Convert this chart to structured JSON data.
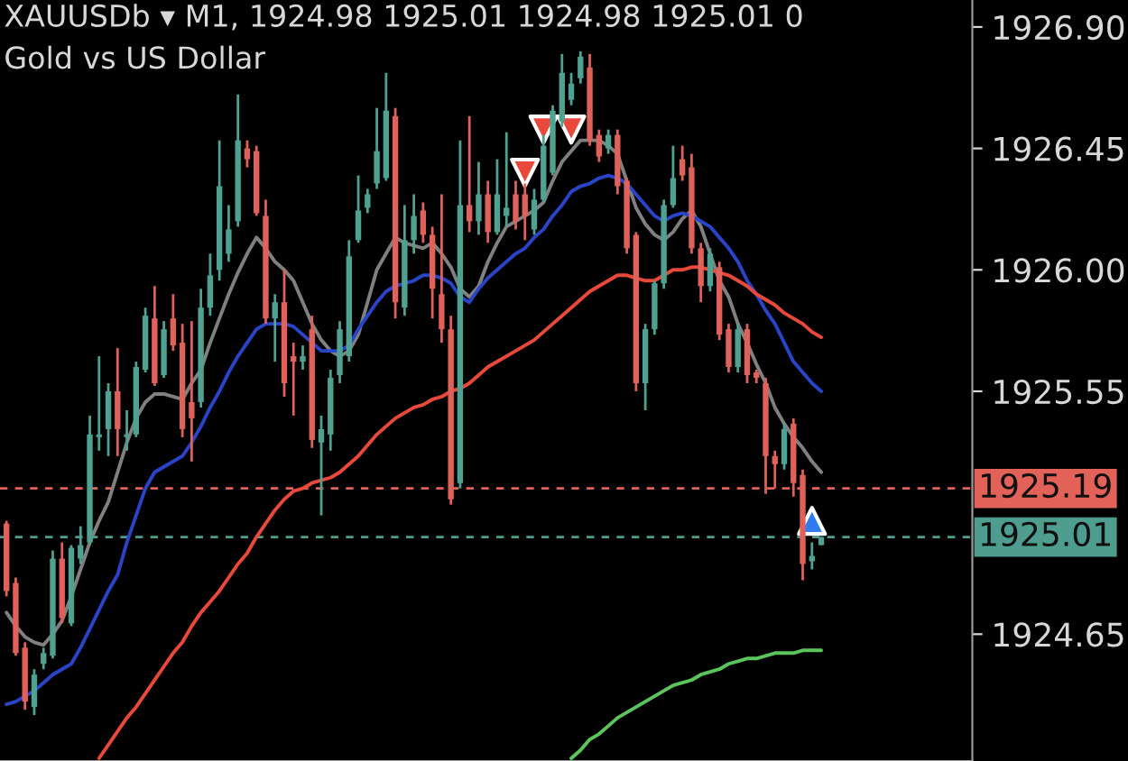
{
  "chart_data": {
    "type": "candlestick",
    "title": "XAUUSDb ▾ M1, 1924.98 1925.01 1924.98 1925.01 0",
    "subtitle": "Gold vs US Dollar",
    "categories": [
      null,
      null,
      null,
      null,
      null,
      null,
      null,
      null,
      null,
      null,
      null,
      null,
      null,
      null,
      null,
      null,
      null,
      null,
      null,
      null,
      null,
      null,
      null,
      null,
      null,
      null,
      null,
      null,
      null,
      null,
      null,
      null,
      null,
      null,
      null,
      null,
      null,
      null,
      null,
      null,
      null,
      null,
      null,
      null,
      null,
      null,
      null,
      null,
      null,
      null,
      null,
      null,
      null,
      null,
      null,
      null,
      null,
      null,
      null,
      null,
      null,
      null,
      null,
      null,
      null,
      null,
      null,
      null,
      null,
      null,
      null,
      null,
      null,
      null,
      null,
      null,
      null,
      null,
      null,
      null,
      null,
      null,
      null,
      null,
      null,
      null,
      null,
      null,
      null
    ],
    "ohlc": [
      [
        1925.06,
        1925.07,
        1924.79,
        1924.81
      ],
      [
        1924.84,
        1924.86,
        1924.57,
        1924.58
      ],
      [
        1924.6,
        1924.62,
        1924.37,
        1924.4
      ],
      [
        1924.38,
        1924.52,
        1924.35,
        1924.5
      ],
      [
        1924.54,
        1924.6,
        1924.52,
        1924.58
      ],
      [
        1924.57,
        1924.96,
        1924.56,
        1924.93
      ],
      [
        1924.93,
        1924.99,
        1924.69,
        1924.71
      ],
      [
        1924.69,
        1924.98,
        1924.68,
        1924.97
      ],
      [
        1924.93,
        1925.05,
        1924.91,
        1924.98
      ],
      [
        1924.99,
        1925.46,
        1924.98,
        1925.39
      ],
      [
        1925.38,
        1925.68,
        1925.33,
        1925.39
      ],
      [
        1925.41,
        1925.58,
        1925.31,
        1925.55
      ],
      [
        1925.55,
        1925.71,
        1925.31,
        1925.41
      ],
      [
        1925.38,
        1925.48,
        1925.33,
        1925.39
      ],
      [
        1925.39,
        1925.66,
        1925.38,
        1925.64
      ],
      [
        1925.63,
        1925.86,
        1925.62,
        1925.83
      ],
      [
        1925.82,
        1925.94,
        1925.57,
        1925.58
      ],
      [
        1925.61,
        1925.81,
        1925.6,
        1925.78
      ],
      [
        1925.82,
        1925.91,
        1925.7,
        1925.72
      ],
      [
        1925.73,
        1925.8,
        1925.38,
        1925.41
      ],
      [
        1925.51,
        1925.81,
        1925.29,
        1925.45
      ],
      [
        1925.51,
        1925.93,
        1925.49,
        1925.86
      ],
      [
        1925.86,
        1926.06,
        1925.83,
        1925.98
      ],
      [
        1926.0,
        1926.48,
        1925.96,
        1926.31
      ],
      [
        1926.06,
        1926.24,
        1926.03,
        1926.15
      ],
      [
        1926.18,
        1926.65,
        1926.16,
        1926.48
      ],
      [
        1926.45,
        1926.48,
        1926.38,
        1926.41
      ],
      [
        1926.44,
        1926.46,
        1926.2,
        1926.21
      ],
      [
        1926.2,
        1926.26,
        1925.8,
        1925.82
      ],
      [
        1925.82,
        1925.91,
        1925.66,
        1925.88
      ],
      [
        1925.88,
        1926.0,
        1925.53,
        1925.58
      ],
      [
        1925.68,
        1925.73,
        1925.46,
        1925.66
      ],
      [
        1925.66,
        1925.72,
        1925.63,
        1925.68
      ],
      [
        1925.78,
        1925.83,
        1925.34,
        1925.37
      ],
      [
        1925.36,
        1925.46,
        1925.09,
        1925.41
      ],
      [
        1925.39,
        1925.63,
        1925.33,
        1925.6
      ],
      [
        1925.61,
        1925.81,
        1925.58,
        1925.78
      ],
      [
        1925.68,
        1926.11,
        1925.66,
        1926.05
      ],
      [
        1926.11,
        1926.35,
        1926.1,
        1926.22
      ],
      [
        1926.23,
        1926.3,
        1926.21,
        1926.28
      ],
      [
        1926.32,
        1926.6,
        1926.3,
        1926.44
      ],
      [
        1926.34,
        1926.73,
        1926.33,
        1926.59
      ],
      [
        1926.57,
        1926.6,
        1925.82,
        1925.88
      ],
      [
        1925.86,
        1926.24,
        1925.83,
        1926.11
      ],
      [
        1926.11,
        1926.28,
        1926.06,
        1926.2
      ],
      [
        1926.22,
        1926.25,
        1926.1,
        1926.13
      ],
      [
        1926.13,
        1926.16,
        1925.82,
        1925.93
      ],
      [
        1925.91,
        1926.28,
        1925.73,
        1925.78
      ],
      [
        1925.78,
        1925.83,
        1925.13,
        1925.15
      ],
      [
        1925.21,
        1926.48,
        1925.19,
        1926.24
      ],
      [
        1926.24,
        1926.57,
        1926.14,
        1926.18
      ],
      [
        1926.18,
        1926.4,
        1926.13,
        1926.28
      ],
      [
        1926.28,
        1926.33,
        1926.1,
        1926.14
      ],
      [
        1926.14,
        1926.41,
        1926.13,
        1926.28
      ],
      [
        1926.2,
        1926.51,
        1926.16,
        1926.23
      ],
      [
        1926.28,
        1926.33,
        1926.15,
        1926.18
      ],
      [
        1926.28,
        1926.32,
        1926.11,
        1926.2
      ],
      [
        1926.15,
        1926.3,
        1926.13,
        1926.26
      ],
      [
        1926.26,
        1926.5,
        1926.25,
        1926.46
      ],
      [
        1926.36,
        1926.61,
        1926.35,
        1926.59
      ],
      [
        1926.55,
        1926.8,
        1926.53,
        1926.73
      ],
      [
        1926.63,
        1926.73,
        1926.61,
        1926.69
      ],
      [
        1926.71,
        1926.81,
        1926.69,
        1926.79
      ],
      [
        1926.75,
        1926.8,
        1926.46,
        1926.48
      ],
      [
        1926.5,
        1926.52,
        1926.4,
        1926.42
      ],
      [
        1926.45,
        1926.52,
        1926.43,
        1926.5
      ],
      [
        1926.5,
        1926.52,
        1926.28,
        1926.31
      ],
      [
        1926.33,
        1926.34,
        1926.06,
        1926.08
      ],
      [
        1926.13,
        1926.14,
        1925.55,
        1925.58
      ],
      [
        1925.58,
        1925.8,
        1925.48,
        1925.78
      ],
      [
        1925.78,
        1925.96,
        1925.76,
        1925.95
      ],
      [
        1925.95,
        1926.26,
        1925.93,
        1926.24
      ],
      [
        1926.24,
        1926.46,
        1926.23,
        1926.34
      ],
      [
        1926.41,
        1926.46,
        1926.33,
        1926.35
      ],
      [
        1926.38,
        1926.43,
        1926.06,
        1926.08
      ],
      [
        1926.08,
        1926.1,
        1925.88,
        1925.94
      ],
      [
        1925.94,
        1926.08,
        1925.92,
        1926.06
      ],
      [
        1926.01,
        1926.03,
        1925.74,
        1925.76
      ],
      [
        1925.78,
        1925.8,
        1925.62,
        1925.64
      ],
      [
        1925.64,
        1925.8,
        1925.62,
        1925.78
      ],
      [
        1925.78,
        1925.8,
        1925.58,
        1925.61
      ],
      [
        1925.62,
        1925.63,
        1925.58,
        1925.6
      ],
      [
        1925.58,
        1925.6,
        1925.17,
        1925.31
      ],
      [
        1925.31,
        1925.33,
        1925.19,
        1925.28
      ],
      [
        1925.28,
        1925.43,
        1925.26,
        1925.41
      ],
      [
        1925.43,
        1925.45,
        1925.16,
        1925.21
      ],
      [
        1925.24,
        1925.26,
        1924.85,
        1924.91
      ],
      [
        1924.92,
        1924.99,
        1924.89,
        1924.94
      ],
      [
        1924.98,
        1925.01,
        1924.98,
        1925.01
      ]
    ],
    "colors": [
      "#e0615a",
      "#e0615a",
      "#e0615a",
      "#4fa191",
      "#4fa191",
      "#4fa191",
      "#e0615a",
      "#4fa191",
      "#4fa191",
      "#4fa191",
      "#4fa191",
      "#4fa191",
      "#e0615a",
      "#4fa191",
      "#4fa191",
      "#4fa191",
      "#e0615a",
      "#4fa191",
      "#e0615a",
      "#e0615a",
      "#e0615a",
      "#4fa191",
      "#4fa191",
      "#4fa191",
      "#4fa191",
      "#4fa191",
      "#e0615a",
      "#e0615a",
      "#e0615a",
      "#4fa191",
      "#e0615a",
      "#e0615a",
      "#4fa191",
      "#e0615a",
      "#4fa191",
      "#4fa191",
      "#4fa191",
      "#4fa191",
      "#4fa191",
      "#4fa191",
      "#4fa191",
      "#4fa191",
      "#e0615a",
      "#4fa191",
      "#4fa191",
      "#e0615a",
      "#e0615a",
      "#e0615a",
      "#e0615a",
      "#4fa191",
      "#e0615a",
      "#4fa191",
      "#e0615a",
      "#4fa191",
      "#4fa191",
      "#e0615a",
      "#e0615a",
      "#4fa191",
      "#4fa191",
      "#4fa191",
      "#4fa191",
      "#4fa191",
      "#4fa191",
      "#e0615a",
      "#e0615a",
      "#4fa191",
      "#e0615a",
      "#e0615a",
      "#e0615a",
      "#4fa191",
      "#4fa191",
      "#4fa191",
      "#4fa191",
      "#e0615a",
      "#e0615a",
      "#e0615a",
      "#4fa191",
      "#e0615a",
      "#e0615a",
      "#4fa191",
      "#e0615a",
      "#e0615a",
      "#e0615a",
      "#e0615a",
      "#4fa191",
      "#e0615a",
      "#e0615a",
      "#4fa191",
      "#4fa191"
    ],
    "series": [
      {
        "type": "line",
        "color": "#808080",
        "values": [
          1924.73,
          1924.68,
          1924.64,
          1924.62,
          1924.61,
          1924.65,
          1924.7,
          1924.79,
          1924.89,
          1924.99,
          1925.07,
          1925.14,
          1925.25,
          1925.36,
          1925.45,
          1925.51,
          1925.54,
          1925.54,
          1925.53,
          1925.52,
          1925.58,
          1925.63,
          1925.73,
          1925.82,
          1925.91,
          1925.99,
          1926.06,
          1926.12,
          1926.08,
          1926.03,
          1926.0,
          1925.96,
          1925.88,
          1925.8,
          1925.74,
          1925.7,
          1925.68,
          1925.7,
          1925.76,
          1925.88,
          1926.0,
          1926.06,
          1926.12,
          1926.1,
          1926.09,
          1926.08,
          1926.1,
          1926.06,
          1926.01,
          1925.93,
          1925.9,
          1925.94,
          1926.03,
          1926.1,
          1926.16,
          1926.18,
          1926.2,
          1926.22,
          1926.25,
          1926.33,
          1926.4,
          1926.44,
          1926.48,
          1926.48,
          1926.48,
          1926.46,
          1926.43,
          1926.33,
          1926.23,
          1926.17,
          1926.13,
          1926.11,
          1926.14,
          1926.19,
          1926.22,
          1926.16,
          1926.06,
          1925.96,
          1925.9,
          1925.8,
          1925.73,
          1925.65,
          1925.58,
          1925.49,
          1925.43,
          1925.38,
          1925.34,
          1925.29,
          1925.25
        ]
      },
      {
        "type": "line",
        "color": "#2a44c8",
        "values": [
          1924.39,
          1924.4,
          1924.42,
          1924.44,
          1924.47,
          1924.5,
          1924.52,
          1924.54,
          1924.6,
          1924.67,
          1924.74,
          1924.81,
          1924.87,
          1924.99,
          1925.09,
          1925.19,
          1925.25,
          1925.27,
          1925.29,
          1925.31,
          1925.36,
          1925.42,
          1925.49,
          1925.55,
          1925.62,
          1925.68,
          1925.73,
          1925.78,
          1925.8,
          1925.8,
          1925.8,
          1925.79,
          1925.76,
          1925.73,
          1925.7,
          1925.7,
          1925.7,
          1925.72,
          1925.78,
          1925.83,
          1925.88,
          1925.92,
          1925.94,
          1925.95,
          1925.96,
          1925.98,
          1925.98,
          1925.97,
          1925.95,
          1925.9,
          1925.88,
          1925.93,
          1925.97,
          1926.0,
          1926.03,
          1926.06,
          1926.08,
          1926.12,
          1926.15,
          1926.2,
          1926.24,
          1926.29,
          1926.31,
          1926.32,
          1926.34,
          1926.35,
          1926.34,
          1926.32,
          1926.28,
          1926.24,
          1926.2,
          1926.18,
          1926.2,
          1926.21,
          1926.2,
          1926.18,
          1926.16,
          1926.12,
          1926.08,
          1926.03,
          1925.96,
          1925.91,
          1925.85,
          1925.8,
          1925.73,
          1925.66,
          1925.62,
          1925.58,
          1925.55
        ]
      },
      {
        "type": "line",
        "color": "#e8493a",
        "values": [
          null,
          null,
          null,
          null,
          null,
          null,
          null,
          null,
          null,
          null,
          1924.19,
          1924.24,
          1924.29,
          1924.34,
          1924.38,
          1924.43,
          1924.48,
          1924.53,
          1924.58,
          1924.62,
          1924.68,
          1924.73,
          1924.77,
          1924.81,
          1924.86,
          1924.91,
          1924.95,
          1925.01,
          1925.06,
          1925.11,
          1925.15,
          1925.18,
          1925.19,
          1925.21,
          1925.22,
          1925.23,
          1925.25,
          1925.28,
          1925.31,
          1925.35,
          1925.39,
          1925.42,
          1925.45,
          1925.47,
          1925.49,
          1925.5,
          1925.52,
          1925.53,
          1925.55,
          1925.56,
          1925.58,
          1925.61,
          1925.64,
          1925.66,
          1925.68,
          1925.7,
          1925.72,
          1925.74,
          1925.77,
          1925.8,
          1925.83,
          1925.86,
          1925.89,
          1925.92,
          1925.94,
          1925.96,
          1925.98,
          1925.98,
          1925.97,
          1925.96,
          1925.96,
          1925.98,
          1926.0,
          1926.0,
          1926.01,
          1926.01,
          1926.0,
          1925.99,
          1925.98,
          1925.96,
          1925.94,
          1925.91,
          1925.89,
          1925.87,
          1925.84,
          1925.82,
          1925.8,
          1925.77,
          1925.75
        ]
      },
      {
        "type": "line",
        "color": "#5cc45c",
        "values": [
          null,
          null,
          null,
          null,
          null,
          null,
          null,
          null,
          null,
          null,
          null,
          null,
          null,
          null,
          null,
          null,
          null,
          null,
          null,
          null,
          null,
          null,
          null,
          null,
          null,
          null,
          null,
          null,
          null,
          null,
          null,
          null,
          null,
          null,
          null,
          null,
          null,
          null,
          null,
          null,
          null,
          null,
          null,
          null,
          null,
          null,
          null,
          null,
          null,
          null,
          null,
          null,
          null,
          null,
          null,
          null,
          null,
          null,
          null,
          null,
          null,
          1924.19,
          1924.22,
          1924.26,
          1924.28,
          1924.31,
          1924.34,
          1924.36,
          1924.38,
          1924.4,
          1924.42,
          1924.44,
          1924.46,
          1924.47,
          1924.48,
          1924.5,
          1924.51,
          1924.52,
          1924.54,
          1924.55,
          1924.56,
          1924.56,
          1924.57,
          1924.58,
          1924.58,
          1924.58,
          1924.59,
          1924.59,
          1924.59
        ]
      },
      {
        "type": "scatter",
        "color": "#e8493a",
        "marker": "triangle_down",
        "values": [
          null,
          null,
          null,
          null,
          null,
          null,
          null,
          null,
          null,
          null,
          null,
          null,
          null,
          null,
          null,
          null,
          null,
          null,
          null,
          null,
          null,
          null,
          null,
          null,
          null,
          null,
          null,
          null,
          null,
          null,
          null,
          null,
          null,
          null,
          null,
          null,
          null,
          null,
          null,
          null,
          null,
          null,
          null,
          null,
          null,
          null,
          null,
          null,
          null,
          null,
          null,
          null,
          null,
          null,
          null,
          null,
          1926.36,
          null,
          1926.52,
          null,
          null,
          1926.52,
          null,
          null,
          null,
          null,
          null,
          null,
          null,
          null,
          null,
          null,
          null,
          null,
          null,
          null,
          null,
          null,
          null,
          null,
          null,
          null,
          null,
          null,
          null,
          null,
          null,
          null,
          null
        ]
      },
      {
        "type": "scatter",
        "color": "#2f7bf0",
        "marker": "triangle",
        "values": [
          null,
          null,
          null,
          null,
          null,
          null,
          null,
          null,
          null,
          null,
          null,
          null,
          null,
          null,
          null,
          null,
          null,
          null,
          null,
          null,
          null,
          null,
          null,
          null,
          null,
          null,
          null,
          null,
          null,
          null,
          null,
          null,
          null,
          null,
          null,
          null,
          null,
          null,
          null,
          null,
          null,
          null,
          null,
          null,
          null,
          null,
          null,
          null,
          null,
          null,
          null,
          null,
          null,
          null,
          null,
          null,
          null,
          null,
          null,
          null,
          null,
          null,
          null,
          null,
          null,
          null,
          null,
          null,
          null,
          null,
          null,
          null,
          null,
          null,
          null,
          null,
          null,
          null,
          null,
          null,
          null,
          null,
          null,
          null,
          null,
          null,
          null,
          1925.07,
          null
        ]
      }
    ],
    "ylim": [
      1924.18,
      1927.0
    ],
    "yticks": [
      {
        "value": 1926.9,
        "label": "1926.90"
      },
      1926.45,
      {
        "value": 1926.0,
        "label": "1926.00"
      },
      1925.55,
      1924.65
    ],
    "ref_lines": [
      {
        "axis": "y",
        "value": 1925.19,
        "label": "1925.19",
        "color": "#e2625a",
        "line_style": "dashed"
      },
      {
        "axis": "y",
        "value": 1925.01,
        "label": "1925.01",
        "color": "#4e9d8f",
        "line_style": "dashed"
      }
    ],
    "tick_labels": "y"
  }
}
